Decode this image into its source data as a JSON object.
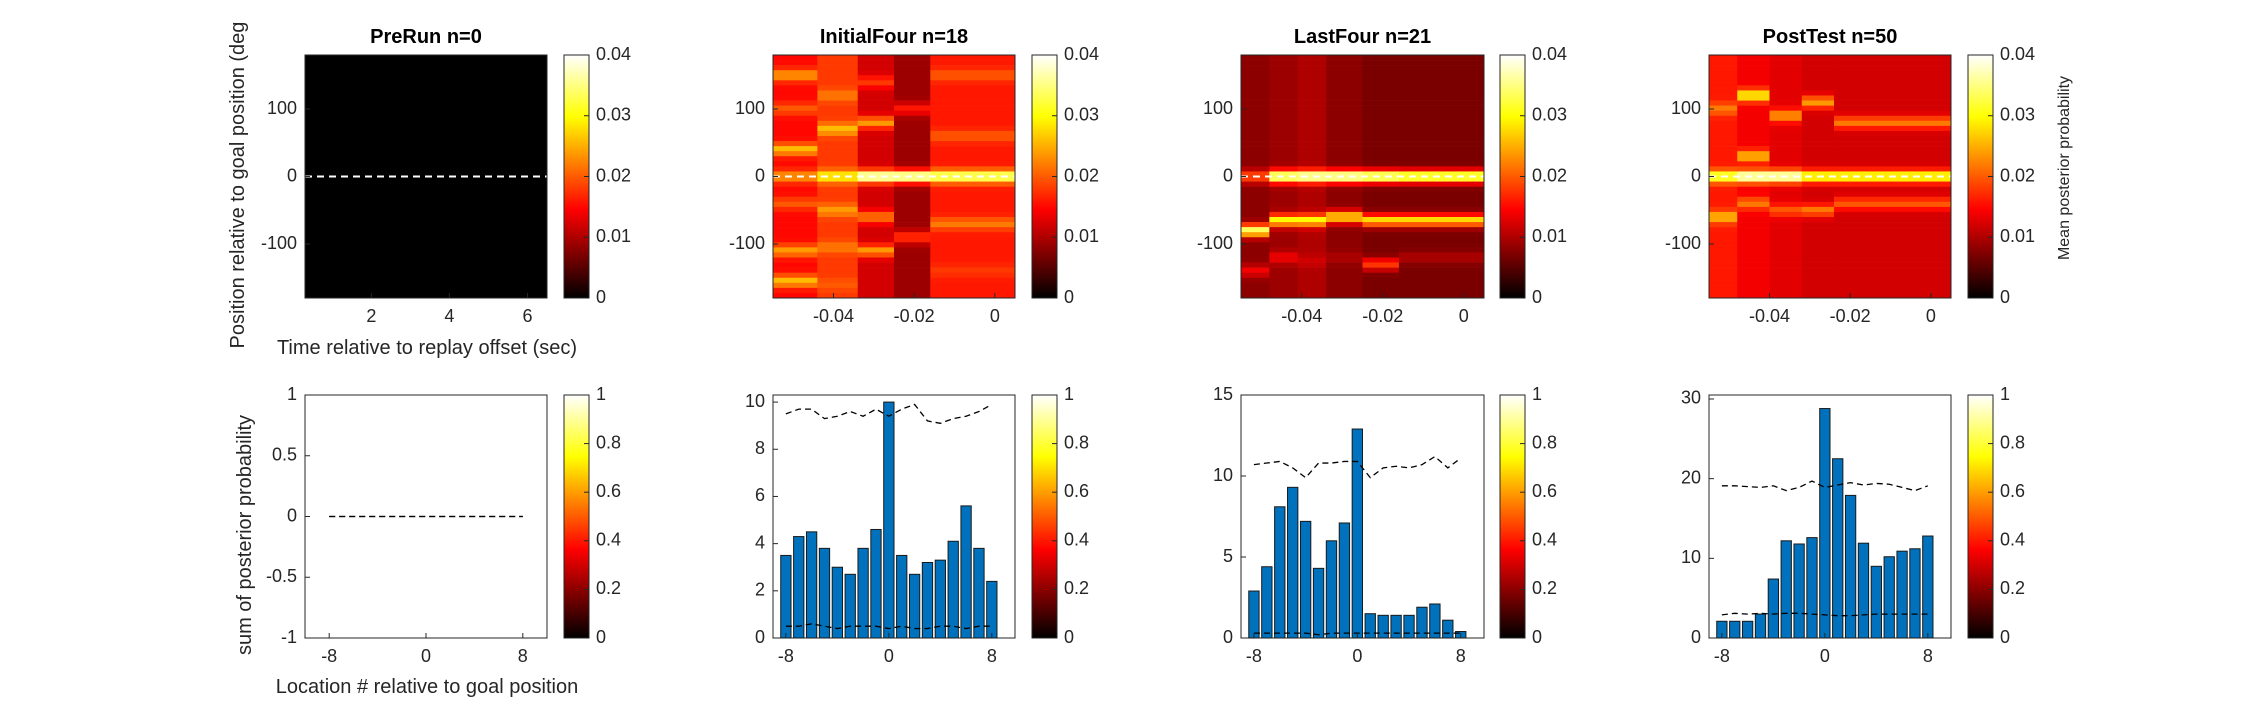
{
  "figure": {
    "colorbar_ticks_top": [
      "0",
      "0.01",
      "0.02",
      "0.03",
      "0.04"
    ],
    "colorbar_ticks_bottom": [
      "0",
      "0.2",
      "0.4",
      "0.6",
      "0.8",
      "1"
    ],
    "colorbar_label": "Mean posterior probability",
    "top_ylabel": "Position relative to goal position (deg",
    "top_xlabel": "Time relative to replay offset (sec)",
    "bottom_ylabel": "sum of posterior probability",
    "bottom_xlabel": "Location # relative to goal position",
    "colormap": "hot",
    "bar_color": "#0072BD"
  },
  "chart_data": [
    {
      "type": "heatmap",
      "title": "PreRun n=0",
      "x_ticks": [
        "2",
        "4",
        "6"
      ],
      "y_ticks": [
        "100",
        "0",
        "-100"
      ],
      "xlim": [
        0.3,
        6.5
      ],
      "ylim": [
        -180,
        180
      ],
      "clim": [
        0,
        0.04
      ],
      "reference_line_y": 0,
      "columns": [],
      "constant_value": 0
    },
    {
      "type": "heatmap",
      "title": "InitialFour n=18",
      "x_ticks": [
        "-0.04",
        "-0.02",
        "0"
      ],
      "y_ticks": [
        "100",
        "0",
        "-100"
      ],
      "xlim": [
        -0.055,
        0.005
      ],
      "ylim": [
        -180,
        180
      ],
      "clim": [
        0,
        0.04
      ],
      "reference_line_y": 0,
      "columns": [
        {
          "x0": -0.055,
          "x1": -0.044,
          "base": 0.015,
          "peaks": [
            [
              150,
              0.024
            ],
            [
              100,
              0.02
            ],
            [
              40,
              0.026
            ],
            [
              0,
              0.024
            ],
            [
              -40,
              0.02
            ],
            [
              -110,
              0.024
            ],
            [
              -155,
              0.026
            ]
          ]
        },
        {
          "x0": -0.044,
          "x1": -0.034,
          "base": 0.018,
          "peaks": [
            [
              120,
              0.022
            ],
            [
              70,
              0.026
            ],
            [
              0,
              0.03
            ],
            [
              -50,
              0.024
            ],
            [
              -105,
              0.022
            ],
            [
              -160,
              0.02
            ]
          ]
        },
        {
          "x0": -0.034,
          "x1": -0.025,
          "base": 0.012,
          "peaks": [
            [
              140,
              0.018
            ],
            [
              80,
              0.024
            ],
            [
              0,
              0.04
            ],
            [
              -60,
              0.022
            ],
            [
              -110,
              0.024
            ]
          ]
        },
        {
          "x0": -0.025,
          "x1": -0.016,
          "base": 0.009,
          "peaks": [
            [
              100,
              0.016
            ],
            [
              0,
              0.04
            ],
            [
              -90,
              0.018
            ]
          ]
        },
        {
          "x0": -0.016,
          "x1": 0.005,
          "base": 0.016,
          "peaks": [
            [
              150,
              0.02
            ],
            [
              60,
              0.02
            ],
            [
              0,
              0.036
            ],
            [
              -70,
              0.022
            ],
            [
              -140,
              0.018
            ]
          ]
        }
      ]
    },
    {
      "type": "heatmap",
      "title": "LastFour n=21",
      "x_ticks": [
        "-0.04",
        "-0.02",
        "0"
      ],
      "y_ticks": [
        "100",
        "0",
        "-100"
      ],
      "xlim": [
        -0.055,
        0.005
      ],
      "ylim": [
        -180,
        180
      ],
      "clim": [
        0,
        0.04
      ],
      "reference_line_y": 0,
      "columns": [
        {
          "x0": -0.055,
          "x1": -0.048,
          "base": 0.008,
          "peaks": [
            [
              0,
              0.02
            ],
            [
              -80,
              0.034
            ],
            [
              -140,
              0.014
            ]
          ]
        },
        {
          "x0": -0.048,
          "x1": -0.041,
          "base": 0.009,
          "peaks": [
            [
              0,
              0.038
            ],
            [
              -65,
              0.03
            ],
            [
              -120,
              0.014
            ]
          ]
        },
        {
          "x0": -0.041,
          "x1": -0.034,
          "base": 0.01,
          "peaks": [
            [
              0,
              0.04
            ],
            [
              -65,
              0.03
            ],
            [
              -125,
              0.012
            ]
          ]
        },
        {
          "x0": -0.034,
          "x1": -0.025,
          "base": 0.008,
          "peaks": [
            [
              0,
              0.04
            ],
            [
              -60,
              0.028
            ],
            [
              -120,
              0.01
            ]
          ]
        },
        {
          "x0": -0.025,
          "x1": -0.016,
          "base": 0.007,
          "peaks": [
            [
              0,
              0.038
            ],
            [
              -65,
              0.028
            ],
            [
              -130,
              0.018
            ]
          ]
        },
        {
          "x0": -0.016,
          "x1": 0.005,
          "base": 0.007,
          "peaks": [
            [
              0,
              0.036
            ],
            [
              -65,
              0.028
            ],
            [
              -120,
              0.01
            ]
          ]
        }
      ]
    },
    {
      "type": "heatmap",
      "title": "PostTest n=50",
      "x_ticks": [
        "-0.04",
        "-0.02",
        "0"
      ],
      "y_ticks": [
        "100",
        "0",
        "-100"
      ],
      "xlim": [
        -0.055,
        0.005
      ],
      "ylim": [
        -180,
        180
      ],
      "clim": [
        0,
        0.04
      ],
      "reference_line_y": 0,
      "columns": [
        {
          "x0": -0.055,
          "x1": -0.048,
          "base": 0.016,
          "peaks": [
            [
              100,
              0.022
            ],
            [
              0,
              0.034
            ],
            [
              -60,
              0.026
            ],
            [
              -140,
              0.004
            ]
          ]
        },
        {
          "x0": -0.048,
          "x1": -0.04,
          "base": 0.014,
          "peaks": [
            [
              120,
              0.03
            ],
            [
              30,
              0.026
            ],
            [
              0,
              0.04
            ],
            [
              -40,
              0.022
            ],
            [
              -140,
              0.004
            ]
          ]
        },
        {
          "x0": -0.04,
          "x1": -0.032,
          "base": 0.013,
          "peaks": [
            [
              90,
              0.024
            ],
            [
              0,
              0.04
            ],
            [
              -50,
              0.02
            ],
            [
              -140,
              0.004
            ]
          ]
        },
        {
          "x0": -0.032,
          "x1": -0.024,
          "base": 0.012,
          "peaks": [
            [
              110,
              0.024
            ],
            [
              0,
              0.032
            ],
            [
              -50,
              0.022
            ],
            [
              -140,
              0.004
            ]
          ]
        },
        {
          "x0": -0.024,
          "x1": 0.005,
          "base": 0.012,
          "peaks": [
            [
              80,
              0.022
            ],
            [
              0,
              0.032
            ],
            [
              -40,
              0.02
            ],
            [
              -140,
              0.004
            ]
          ]
        }
      ]
    },
    {
      "type": "bar",
      "title": "",
      "x_ticks": [
        "-8",
        "0",
        "8"
      ],
      "y_ticks": [
        "1",
        "0.5",
        "0",
        "-0.5",
        "-1"
      ],
      "xlim": [
        -10,
        10
      ],
      "ylim": [
        -1,
        1
      ],
      "x": [
        -8,
        -7,
        -6,
        -5,
        -4,
        -3,
        -2,
        -1,
        0,
        1,
        2,
        3,
        4,
        5,
        6,
        7,
        8
      ],
      "values": [
        0,
        0,
        0,
        0,
        0,
        0,
        0,
        0,
        0,
        0,
        0,
        0,
        0,
        0,
        0,
        0,
        0
      ],
      "upper_bound": [
        0,
        0,
        0,
        0,
        0,
        0,
        0,
        0,
        0,
        0,
        0,
        0,
        0,
        0,
        0,
        0,
        0
      ],
      "lower_bound": [
        0,
        0,
        0,
        0,
        0,
        0,
        0,
        0,
        0,
        0,
        0,
        0,
        0,
        0,
        0,
        0,
        0
      ]
    },
    {
      "type": "bar",
      "title": "",
      "x_ticks": [
        "-8",
        "0",
        "8"
      ],
      "y_ticks": [
        "10",
        "8",
        "6",
        "4",
        "2",
        "0"
      ],
      "xlim": [
        -9,
        9.8
      ],
      "ylim": [
        0,
        10.3
      ],
      "x": [
        -8,
        -7,
        -6,
        -5,
        -4,
        -3,
        -2,
        -1,
        0,
        1,
        2,
        3,
        4,
        5,
        6,
        7,
        8
      ],
      "values": [
        3.5,
        4.3,
        4.5,
        3.8,
        3.0,
        2.7,
        3.8,
        4.6,
        10.0,
        3.5,
        2.7,
        3.2,
        3.3,
        4.1,
        5.6,
        3.8,
        2.4
      ],
      "upper_bound": [
        9.5,
        9.7,
        9.7,
        9.3,
        9.4,
        9.6,
        9.4,
        9.7,
        9.4,
        9.7,
        9.9,
        9.2,
        9.1,
        9.3,
        9.4,
        9.6,
        9.9
      ],
      "lower_bound": [
        0.5,
        0.5,
        0.6,
        0.5,
        0.4,
        0.5,
        0.5,
        0.5,
        0.4,
        0.5,
        0.4,
        0.4,
        0.5,
        0.5,
        0.4,
        0.5,
        0.5
      ]
    },
    {
      "type": "bar",
      "title": "",
      "x_ticks": [
        "-8",
        "0",
        "8"
      ],
      "y_ticks": [
        "15",
        "10",
        "5",
        "0"
      ],
      "xlim": [
        -9,
        9.8
      ],
      "ylim": [
        0,
        15
      ],
      "x": [
        -8,
        -7,
        -6,
        -5,
        -4,
        -3,
        -2,
        -1,
        0,
        1,
        2,
        3,
        4,
        5,
        6,
        7,
        8
      ],
      "values": [
        2.9,
        4.4,
        8.1,
        9.3,
        7.2,
        4.3,
        6.0,
        7.1,
        12.9,
        1.5,
        1.4,
        1.4,
        1.4,
        1.9,
        2.1,
        1.1,
        0.4
      ],
      "upper_bound": [
        10.7,
        10.8,
        10.9,
        10.5,
        9.9,
        10.8,
        10.8,
        10.9,
        10.9,
        9.9,
        10.5,
        10.6,
        10.5,
        10.7,
        11.2,
        10.5,
        11.1
      ],
      "lower_bound": [
        0.3,
        0.3,
        0.3,
        0.3,
        0.3,
        0.2,
        0.3,
        0.3,
        0.3,
        0.3,
        0.3,
        0.3,
        0.3,
        0.3,
        0.3,
        0.3,
        0.3
      ]
    },
    {
      "type": "bar",
      "title": "",
      "x_ticks": [
        "-8",
        "0",
        "8"
      ],
      "y_ticks": [
        "30",
        "20",
        "10",
        "0"
      ],
      "xlim": [
        -9,
        9.8
      ],
      "ylim": [
        0,
        30.5
      ],
      "x": [
        -8,
        -7,
        -6,
        -5,
        -4,
        -3,
        -2,
        -1,
        0,
        1,
        2,
        3,
        4,
        5,
        6,
        7,
        8
      ],
      "values": [
        2.1,
        2.1,
        2.1,
        3.0,
        7.4,
        12.2,
        11.8,
        12.6,
        28.8,
        22.5,
        17.9,
        11.9,
        9.0,
        10.2,
        10.9,
        11.2,
        12.8
      ],
      "upper_bound": [
        19.1,
        19.1,
        19.0,
        18.9,
        19.1,
        18.5,
        18.9,
        19.7,
        18.9,
        19.2,
        19.5,
        19.2,
        19.4,
        19.3,
        18.9,
        18.5,
        19.1
      ],
      "lower_bound": [
        2.9,
        3.1,
        3.0,
        3.1,
        3.0,
        3.1,
        3.1,
        3.0,
        2.9,
        2.8,
        2.8,
        2.9,
        3.0,
        3.0,
        3.0,
        3.0,
        3.0
      ]
    }
  ]
}
